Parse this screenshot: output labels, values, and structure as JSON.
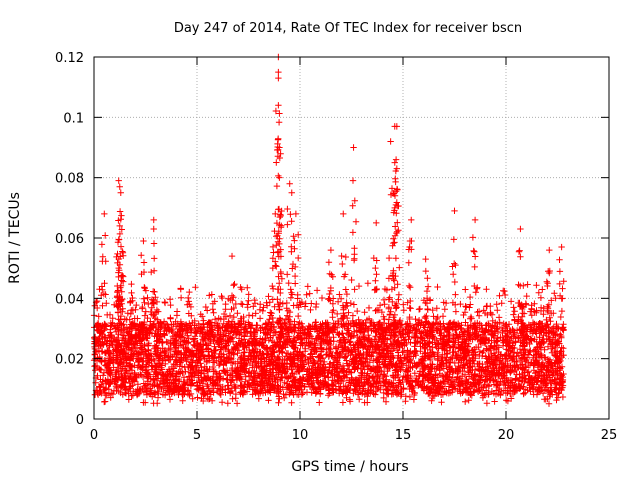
{
  "chart_data": {
    "type": "scatter",
    "title": "Day 247 of 2014, Rate Of TEC Index for receiver bscn",
    "xlabel": "GPS time / hours",
    "ylabel": "ROTI / TECUs",
    "xlim": [
      0,
      25
    ],
    "ylim": [
      0,
      0.12
    ],
    "xticks": [
      "0",
      "5",
      "10",
      "15",
      "20",
      "25"
    ],
    "yticks": [
      "0",
      "0.02",
      "0.04",
      "0.06",
      "0.08",
      "0.1",
      "0.12"
    ],
    "grid": true,
    "marker": "+",
    "color": "#ff0000",
    "series": [
      {
        "name": "ROTI",
        "x_range": [
          0,
          22.8
        ],
        "typical_range": [
          0.008,
          0.035
        ],
        "notable_points": [
          {
            "x": 0.5,
            "y": 0.068
          },
          {
            "x": 1.2,
            "y": 0.079
          },
          {
            "x": 1.25,
            "y": 0.077
          },
          {
            "x": 1.3,
            "y": 0.075
          },
          {
            "x": 1.25,
            "y": 0.064
          },
          {
            "x": 1.2,
            "y": 0.05
          },
          {
            "x": 2.4,
            "y": 0.059
          },
          {
            "x": 2.9,
            "y": 0.066
          },
          {
            "x": 2.9,
            "y": 0.063
          },
          {
            "x": 8.95,
            "y": 0.12
          },
          {
            "x": 8.95,
            "y": 0.115
          },
          {
            "x": 8.95,
            "y": 0.113
          },
          {
            "x": 8.95,
            "y": 0.104
          },
          {
            "x": 9.0,
            "y": 0.09
          },
          {
            "x": 9.0,
            "y": 0.08
          },
          {
            "x": 9.5,
            "y": 0.078
          },
          {
            "x": 9.6,
            "y": 0.075
          },
          {
            "x": 8.8,
            "y": 0.068
          },
          {
            "x": 9.8,
            "y": 0.068
          },
          {
            "x": 12.1,
            "y": 0.068
          },
          {
            "x": 12.6,
            "y": 0.09
          },
          {
            "x": 13.7,
            "y": 0.065
          },
          {
            "x": 14.4,
            "y": 0.092
          },
          {
            "x": 14.6,
            "y": 0.097
          },
          {
            "x": 14.7,
            "y": 0.097
          },
          {
            "x": 14.6,
            "y": 0.085
          },
          {
            "x": 14.7,
            "y": 0.083
          },
          {
            "x": 14.6,
            "y": 0.07
          },
          {
            "x": 15.4,
            "y": 0.066
          },
          {
            "x": 17.5,
            "y": 0.069
          },
          {
            "x": 18.5,
            "y": 0.066
          },
          {
            "x": 20.7,
            "y": 0.063
          },
          {
            "x": 22.1,
            "y": 0.056
          },
          {
            "x": 22.7,
            "y": 0.057
          },
          {
            "x": 11.5,
            "y": 0.056
          },
          {
            "x": 6.7,
            "y": 0.054
          },
          {
            "x": 16.1,
            "y": 0.053
          }
        ]
      }
    ]
  }
}
